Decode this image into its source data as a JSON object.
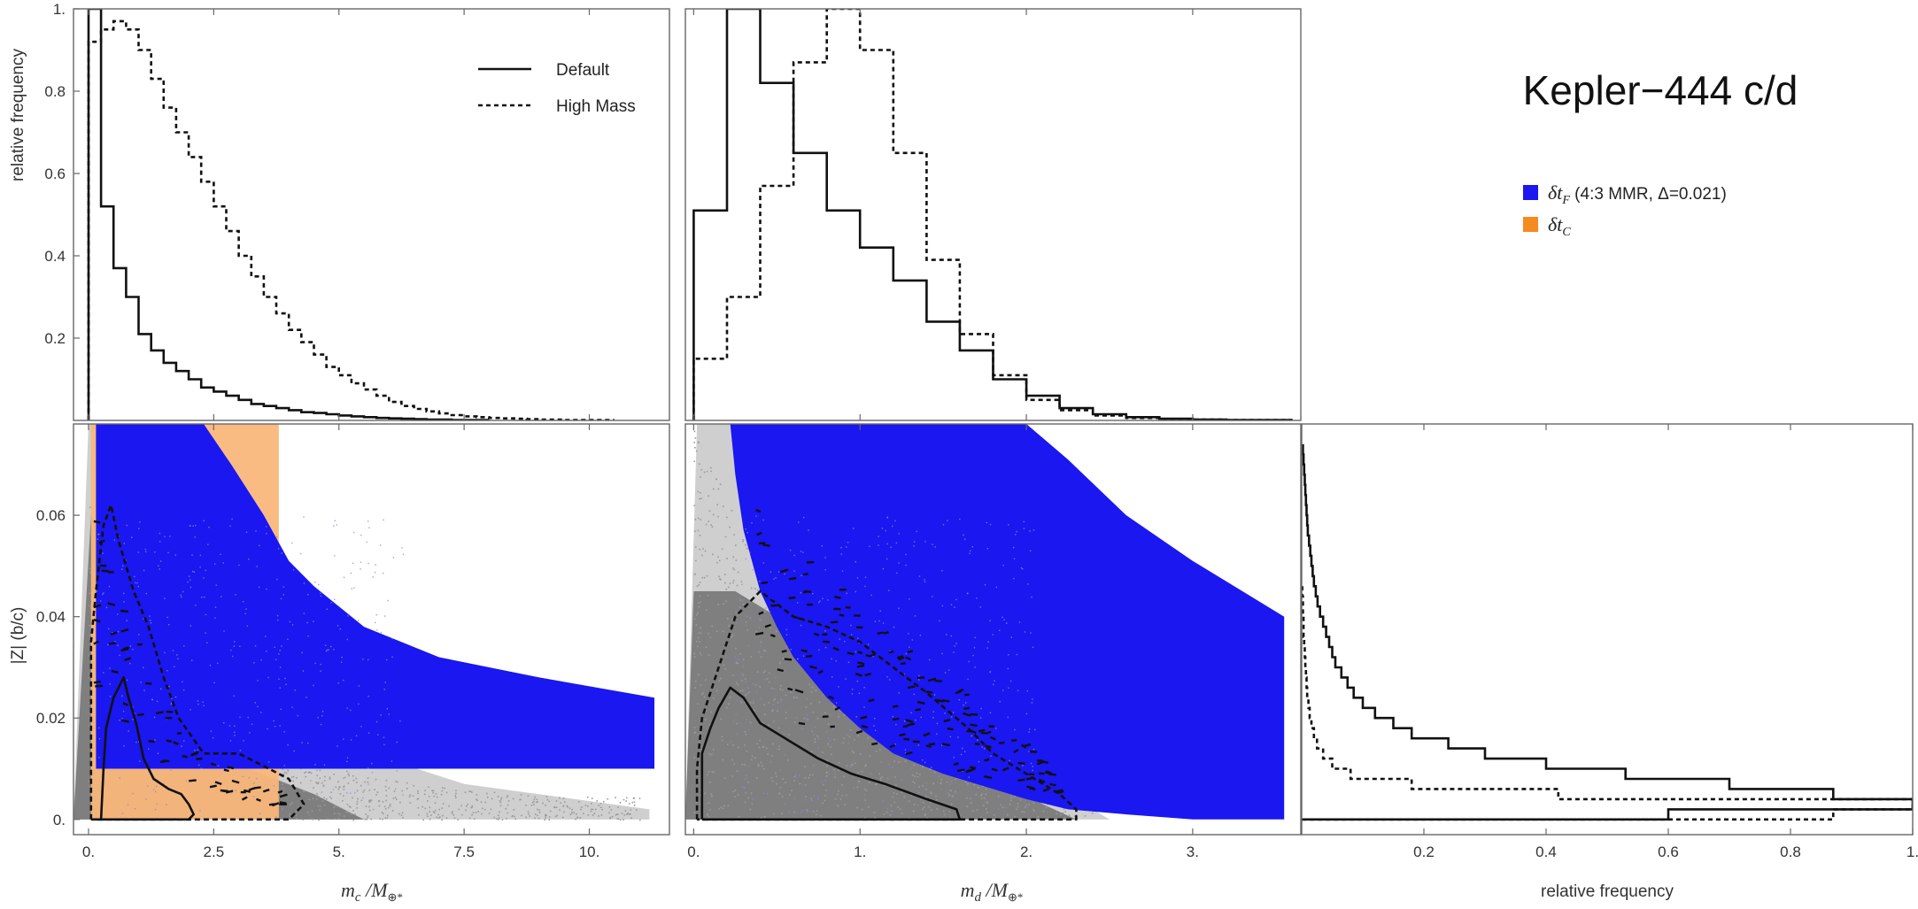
{
  "figure": {
    "title": "Kepler−444 c/d"
  },
  "colors": {
    "dtf": "#1a17f0",
    "dtc": "#f9b77a",
    "dtc_swatch": "#f58a1f",
    "scatter": "#7f7f7f",
    "ink": "#111111"
  },
  "legend_hist": {
    "solid": "Default",
    "dashed": "High Mass"
  },
  "legend_map": {
    "dtf": {
      "sym": "δt",
      "sub": "F",
      "rest": " (4:3 MMR, Δ=0.021)"
    },
    "dtc": {
      "sym": "δt",
      "sub": "C"
    }
  },
  "labels": {
    "ylabel_top": "relative frequency",
    "ylabel_bottom": "|Z| (b/c)",
    "xlabel_c": {
      "m": "m",
      "sub": "c",
      "rest": " /M",
      "sub2": "⊕*"
    },
    "xlabel_d": {
      "m": "m",
      "sub": "d",
      "rest": " /M",
      "sub2": "⊕*"
    },
    "xlabel_hist": "relative frequency"
  },
  "chart_data": [
    {
      "id": "hist_mc",
      "type": "bar",
      "title": "",
      "xlabel": "m_c / M_⊕*",
      "ylabel": "relative frequency",
      "xlim": [
        -0.3,
        11.6
      ],
      "ylim": [
        0,
        1
      ],
      "xticks": [
        0,
        2.5,
        5,
        7.5,
        10
      ],
      "xtick_labels": [
        "0.",
        "2.5",
        "5.",
        "7.5",
        "10."
      ],
      "yticks": [
        0.2,
        0.4,
        0.6,
        0.8,
        1.0
      ],
      "ytick_labels": [
        "0.2",
        "0.4",
        "0.6",
        "0.8",
        "1."
      ],
      "bin_width": 0.25,
      "series": [
        {
          "name": "Default",
          "style": "solid",
          "x0": 0.0,
          "values": [
            1.0,
            0.52,
            0.37,
            0.3,
            0.21,
            0.17,
            0.14,
            0.12,
            0.1,
            0.08,
            0.07,
            0.06,
            0.05,
            0.04,
            0.035,
            0.03,
            0.025,
            0.02,
            0.018,
            0.015,
            0.012,
            0.01,
            0.008,
            0.006,
            0.005,
            0.004,
            0.003,
            0.002,
            0.002,
            0.001,
            0.001,
            0.001
          ]
        },
        {
          "name": "High Mass",
          "style": "dashed",
          "x0": 0.0,
          "values": [
            0.92,
            0.95,
            0.97,
            0.95,
            0.9,
            0.83,
            0.76,
            0.7,
            0.64,
            0.58,
            0.52,
            0.46,
            0.4,
            0.35,
            0.3,
            0.26,
            0.22,
            0.19,
            0.16,
            0.13,
            0.11,
            0.09,
            0.075,
            0.06,
            0.045,
            0.035,
            0.028,
            0.022,
            0.017,
            0.013,
            0.01,
            0.008,
            0.006,
            0.005,
            0.004,
            0.003,
            0.002,
            0.002,
            0.001,
            0.001,
            0.001,
            0.001
          ]
        }
      ]
    },
    {
      "id": "hist_md",
      "type": "bar",
      "title": "",
      "xlabel": "m_d / M_⊕*",
      "ylabel": "",
      "xlim": [
        -0.05,
        3.65
      ],
      "ylim": [
        0,
        1
      ],
      "xticks": [
        0,
        1,
        2,
        3
      ],
      "xtick_labels": [
        "0.",
        "1.",
        "2.",
        "3."
      ],
      "bin_width": 0.2,
      "series": [
        {
          "name": "Default",
          "style": "solid",
          "x0": 0.0,
          "values": [
            0.51,
            1.0,
            0.82,
            0.65,
            0.51,
            0.42,
            0.34,
            0.24,
            0.17,
            0.1,
            0.06,
            0.03,
            0.015,
            0.008,
            0.004,
            0.002,
            0.001,
            0.001
          ]
        },
        {
          "name": "High Mass",
          "style": "dashed",
          "x0": 0.0,
          "values": [
            0.15,
            0.3,
            0.57,
            0.87,
            1.0,
            0.9,
            0.65,
            0.39,
            0.21,
            0.11,
            0.05,
            0.025,
            0.012,
            0.006,
            0.003,
            0.002,
            0.001,
            0.001
          ]
        }
      ]
    },
    {
      "id": "map_mc",
      "type": "area",
      "title": "",
      "xlabel": "m_c / M_⊕*",
      "ylabel": "|Z| (b/c)",
      "xlim": [
        -0.3,
        11.6
      ],
      "ylim": [
        -0.003,
        0.078
      ],
      "xticks": [
        0,
        2.5,
        5,
        7.5,
        10
      ],
      "xtick_labels": [
        "0.",
        "2.5",
        "5.",
        "7.5",
        "10."
      ],
      "yticks": [
        0,
        0.02,
        0.04,
        0.06
      ],
      "ytick_labels": [
        "0.",
        "0.02",
        "0.04",
        "0.06"
      ],
      "series": [
        {
          "name": "δt_C",
          "kind": "band",
          "x": [
            0.05,
            3.8
          ],
          "y_top": 0.078,
          "y_bottom": 0.0
        },
        {
          "name": "δt_F (4:3 MMR, Δ=0.021)",
          "kind": "band",
          "x": [
            0.15,
            0.3,
            0.5,
            0.8,
            1.2,
            1.7,
            2.3,
            2.85,
            3.5,
            4.0,
            4.5,
            5.5,
            7.0,
            9.0,
            11.3
          ],
          "y_upper": [
            0.078,
            0.078,
            0.078,
            0.078,
            0.078,
            0.078,
            0.078,
            0.07,
            0.06,
            0.051,
            0.046,
            0.038,
            0.032,
            0.028,
            0.024
          ],
          "y_lower": 0.01
        },
        {
          "name": "Default 68% contour",
          "kind": "contour",
          "style": "solid",
          "x": [
            0.1,
            0.25,
            0.3,
            0.35,
            0.5,
            0.7,
            0.8,
            0.95,
            1.1,
            1.3,
            1.6,
            1.85,
            2.0,
            2.1,
            2.0,
            1.9,
            1.5,
            1.0,
            0.6,
            0.4,
            0.3,
            0.2,
            0.15,
            0.1
          ],
          "y": [
            0.0,
            0.0,
            0.01,
            0.018,
            0.024,
            0.028,
            0.024,
            0.019,
            0.012,
            0.008,
            0.006,
            0.005,
            0.003,
            0.001,
            0.0,
            0.0,
            0.0,
            0.0,
            0.0,
            0.0,
            0.0,
            0.0,
            0.0,
            0.0
          ]
        },
        {
          "name": "High Mass 68% contour",
          "kind": "contour",
          "style": "dashed",
          "x": [
            0.05,
            0.05,
            0.15,
            0.3,
            0.45,
            0.6,
            0.9,
            1.2,
            1.5,
            1.8,
            2.3,
            3.0,
            3.6,
            4.0,
            4.3,
            4.0,
            3.4,
            2.7,
            2.2,
            1.8,
            1.4,
            1.0,
            0.6,
            0.3,
            0.1,
            0.05
          ],
          "y": [
            0.0,
            0.035,
            0.045,
            0.058,
            0.062,
            0.055,
            0.045,
            0.038,
            0.028,
            0.02,
            0.013,
            0.013,
            0.01,
            0.008,
            0.003,
            0.0,
            0.0,
            0.0,
            0.0,
            0.0,
            0.0,
            0.0,
            0.0,
            0.0,
            0.0,
            0.0
          ]
        }
      ]
    },
    {
      "id": "map_md",
      "type": "area",
      "title": "",
      "xlabel": "m_d / M_⊕*",
      "ylabel": "",
      "xlim": [
        -0.05,
        3.65
      ],
      "ylim": [
        -0.003,
        0.078
      ],
      "xticks": [
        0,
        1,
        2,
        3
      ],
      "xtick_labels": [
        "0.",
        "1.",
        "2.",
        "3."
      ],
      "series": [
        {
          "name": "δt_F (4:3 MMR, Δ=0.021)",
          "kind": "band",
          "x": [
            0.22,
            0.25,
            0.3,
            0.4,
            0.5,
            0.6,
            0.8,
            1.0,
            1.2,
            1.5,
            1.8,
            2.0,
            2.25,
            2.6,
            3.0,
            3.55
          ],
          "y_upper": [
            0.078,
            0.078,
            0.078,
            0.078,
            0.078,
            0.078,
            0.078,
            0.078,
            0.078,
            0.078,
            0.078,
            0.078,
            0.071,
            0.06,
            0.051,
            0.04
          ],
          "y_lower": [
            0.078,
            0.068,
            0.057,
            0.045,
            0.038,
            0.032,
            0.024,
            0.018,
            0.013,
            0.009,
            0.006,
            0.004,
            0.002,
            0.001,
            0.0,
            0.0
          ]
        },
        {
          "name": "Default 68% contour",
          "kind": "contour",
          "style": "solid",
          "x": [
            0.05,
            0.05,
            0.1,
            0.15,
            0.22,
            0.3,
            0.4,
            0.55,
            0.75,
            0.95,
            1.15,
            1.4,
            1.58,
            1.6,
            1.5,
            1.2,
            0.9,
            0.6,
            0.3,
            0.1,
            0.05
          ],
          "y": [
            0.0,
            0.013,
            0.018,
            0.022,
            0.026,
            0.024,
            0.019,
            0.016,
            0.012,
            0.009,
            0.007,
            0.004,
            0.002,
            0.0,
            0.0,
            0.0,
            0.0,
            0.0,
            0.0,
            0.0,
            0.0
          ]
        },
        {
          "name": "High Mass 68% contour",
          "kind": "contour",
          "style": "dashed",
          "x": [
            0.02,
            0.02,
            0.05,
            0.1,
            0.15,
            0.25,
            0.4,
            0.6,
            0.8,
            1.0,
            1.2,
            1.4,
            1.65,
            1.8,
            2.0,
            2.2,
            2.3,
            2.3,
            2.1,
            1.8,
            1.4,
            1.0,
            0.6,
            0.3,
            0.1,
            0.02
          ],
          "y": [
            0.0,
            0.01,
            0.02,
            0.025,
            0.03,
            0.04,
            0.045,
            0.04,
            0.038,
            0.035,
            0.03,
            0.025,
            0.018,
            0.013,
            0.009,
            0.005,
            0.002,
            0.0,
            0.0,
            0.0,
            0.0,
            0.0,
            0.0,
            0.0,
            0.0,
            0.0
          ]
        }
      ]
    },
    {
      "id": "hist_z",
      "type": "bar",
      "orientation": "horizontal",
      "title": "",
      "xlabel": "relative frequency",
      "ylabel": "",
      "xlim": [
        0,
        1
      ],
      "ylim": [
        -0.003,
        0.078
      ],
      "xticks": [
        0.2,
        0.4,
        0.6,
        0.8,
        1.0
      ],
      "xtick_labels": [
        "0.2",
        "0.4",
        "0.6",
        "0.8",
        "1."
      ],
      "bin_width": 0.002,
      "series": [
        {
          "name": "Default",
          "style": "solid",
          "y0": 0.0,
          "values": [
            0.6,
            1.0,
            0.87,
            0.7,
            0.53,
            0.4,
            0.3,
            0.24,
            0.18,
            0.15,
            0.12,
            0.1,
            0.085,
            0.075,
            0.065,
            0.055,
            0.05,
            0.045,
            0.04,
            0.035,
            0.03,
            0.026,
            0.023,
            0.02,
            0.018,
            0.016,
            0.014,
            0.012,
            0.01,
            0.009,
            0.008,
            0.007,
            0.006,
            0.005,
            0.004,
            0.003,
            0.002
          ]
        },
        {
          "name": "High Mass",
          "style": "dashed",
          "y0": 0.0,
          "values": [
            0.87,
            1.0,
            0.42,
            0.18,
            0.08,
            0.05,
            0.035,
            0.025,
            0.02,
            0.016,
            0.013,
            0.011,
            0.009,
            0.008,
            0.007,
            0.006,
            0.005,
            0.004,
            0.003,
            0.003,
            0.002,
            0.002,
            0.001
          ]
        }
      ]
    }
  ]
}
